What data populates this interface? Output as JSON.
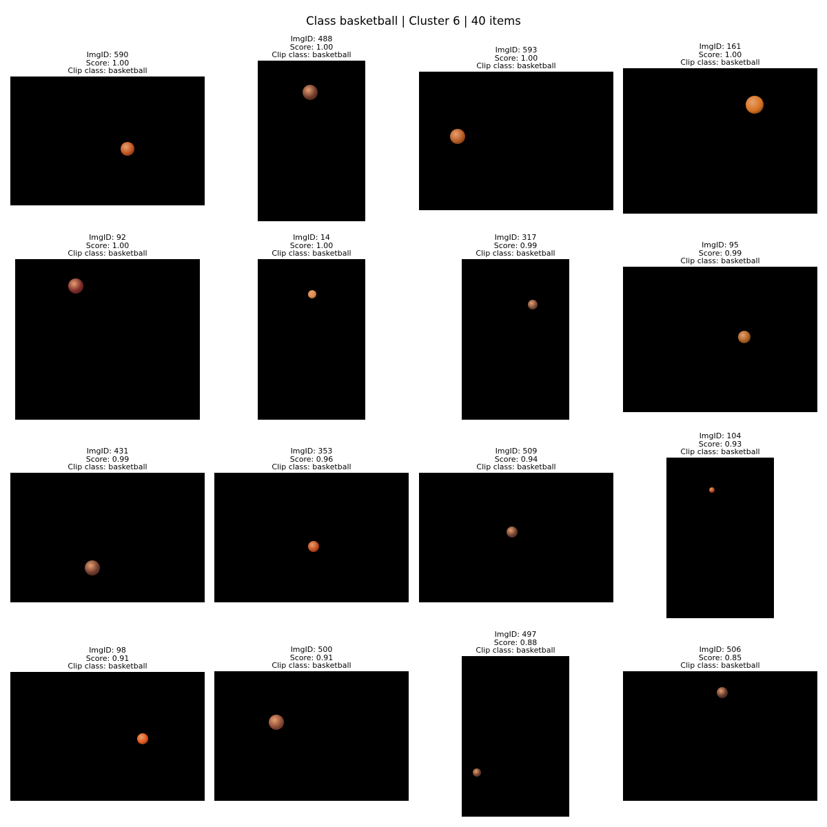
{
  "title": "Class basketball | Cluster 6 | 40 items",
  "labels": {
    "img_id": "ImgID",
    "score": "Score",
    "clip_class": "Clip class"
  },
  "tiles": [
    {
      "img_id": "590",
      "score": "1.00",
      "clip_class": "basketball"
    },
    {
      "img_id": "488",
      "score": "1.00",
      "clip_class": "basketball"
    },
    {
      "img_id": "593",
      "score": "1.00",
      "clip_class": "basketball"
    },
    {
      "img_id": "161",
      "score": "1.00",
      "clip_class": "basketball"
    },
    {
      "img_id": "92",
      "score": "1.00",
      "clip_class": "basketball"
    },
    {
      "img_id": "14",
      "score": "1.00",
      "clip_class": "basketball"
    },
    {
      "img_id": "317",
      "score": "0.99",
      "clip_class": "basketball"
    },
    {
      "img_id": "95",
      "score": "0.99",
      "clip_class": "basketball"
    },
    {
      "img_id": "431",
      "score": "0.99",
      "clip_class": "basketball"
    },
    {
      "img_id": "353",
      "score": "0.96",
      "clip_class": "basketball"
    },
    {
      "img_id": "509",
      "score": "0.94",
      "clip_class": "basketball"
    },
    {
      "img_id": "104",
      "score": "0.93",
      "clip_class": "basketball"
    },
    {
      "img_id": "98",
      "score": "0.91",
      "clip_class": "basketball"
    },
    {
      "img_id": "500",
      "score": "0.91",
      "clip_class": "basketball"
    },
    {
      "img_id": "497",
      "score": "0.88",
      "clip_class": "basketball"
    },
    {
      "img_id": "506",
      "score": "0.85",
      "clip_class": "basketball"
    }
  ]
}
